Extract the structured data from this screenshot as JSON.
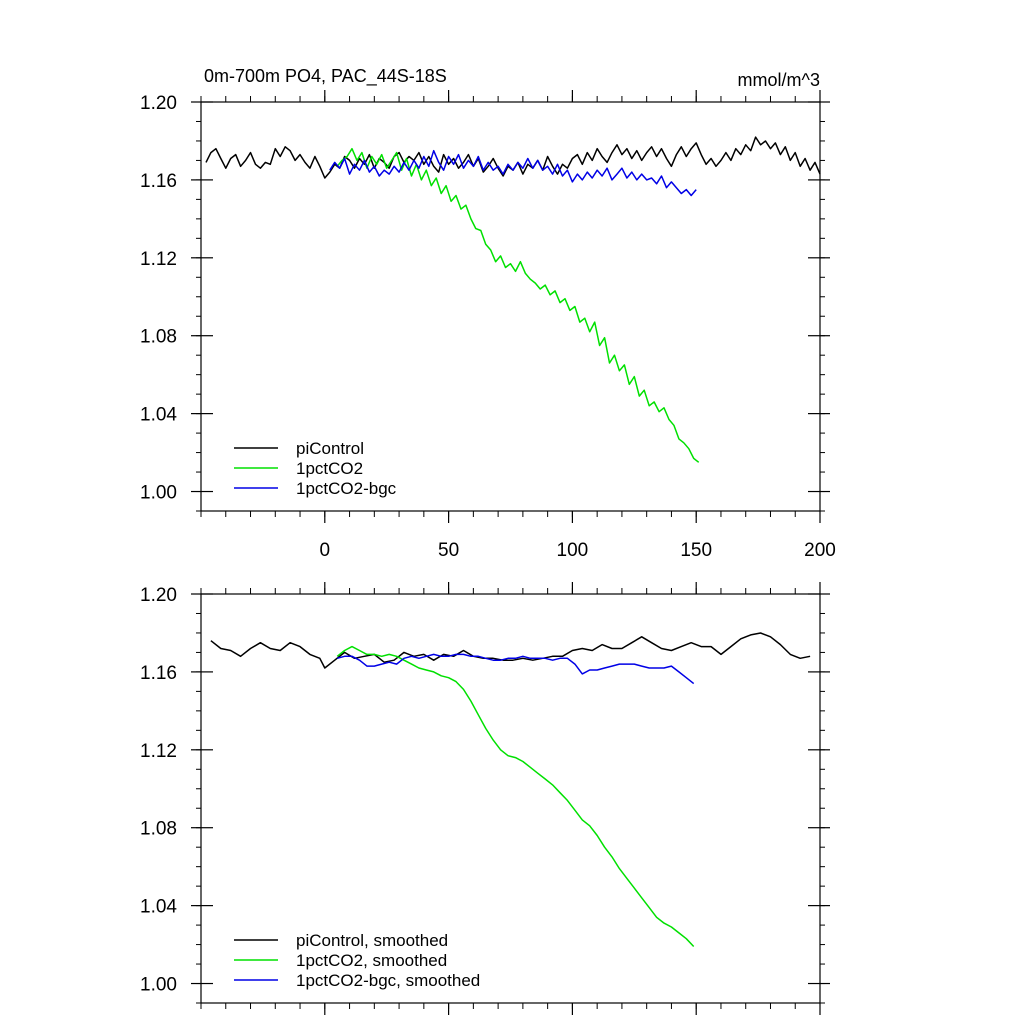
{
  "figure": {
    "title_left": "0m-700m PO4, PAC_44S-18S",
    "title_right": "mmol/m^3"
  },
  "chart_data": [
    {
      "type": "line",
      "panel": "top",
      "title": "0m-700m PO4, PAC_44S-18S",
      "units": "mmol/m^3",
      "xlim": [
        -50,
        200
      ],
      "ylim": [
        0.99,
        1.2
      ],
      "x_ticks": [
        0,
        50,
        100,
        150,
        200
      ],
      "x_tick_labels": [
        "0",
        "50",
        "100",
        "150",
        "200"
      ],
      "y_ticks": [
        1.0,
        1.04,
        1.08,
        1.12,
        1.16,
        1.2
      ],
      "y_tick_labels": [
        "1.00",
        "1.04",
        "1.08",
        "1.12",
        "1.16",
        "1.20"
      ],
      "grid": false,
      "legend_position": "bottom-left",
      "series": [
        {
          "name": "piControl",
          "color": "#000000",
          "x": [
            -48,
            -46,
            -44,
            -42,
            -40,
            -38,
            -36,
            -34,
            -32,
            -30,
            -28,
            -26,
            -24,
            -22,
            -20,
            -18,
            -16,
            -14,
            -12,
            -10,
            -8,
            -6,
            -4,
            -2,
            0,
            2,
            4,
            6,
            8,
            10,
            12,
            14,
            16,
            18,
            20,
            22,
            24,
            26,
            28,
            30,
            32,
            34,
            36,
            38,
            40,
            42,
            44,
            46,
            48,
            50,
            52,
            54,
            56,
            58,
            60,
            62,
            64,
            66,
            68,
            70,
            72,
            74,
            76,
            78,
            80,
            82,
            84,
            86,
            88,
            90,
            92,
            94,
            96,
            98,
            100,
            102,
            104,
            106,
            108,
            110,
            112,
            114,
            116,
            118,
            120,
            122,
            124,
            126,
            128,
            130,
            132,
            134,
            136,
            138,
            140,
            142,
            144,
            146,
            148,
            150,
            152,
            154,
            156,
            158,
            160,
            162,
            164,
            166,
            168,
            170,
            172,
            174,
            176,
            178,
            180,
            182,
            184,
            186,
            188,
            190,
            192,
            194,
            196,
            198,
            200
          ],
          "y": [
            1.169,
            1.174,
            1.176,
            1.171,
            1.166,
            1.171,
            1.173,
            1.167,
            1.17,
            1.174,
            1.168,
            1.166,
            1.169,
            1.168,
            1.176,
            1.172,
            1.177,
            1.175,
            1.17,
            1.173,
            1.169,
            1.166,
            1.172,
            1.167,
            1.161,
            1.164,
            1.168,
            1.166,
            1.172,
            1.17,
            1.166,
            1.171,
            1.168,
            1.173,
            1.166,
            1.171,
            1.169,
            1.166,
            1.172,
            1.174,
            1.169,
            1.172,
            1.17,
            1.174,
            1.168,
            1.172,
            1.167,
            1.164,
            1.173,
            1.168,
            1.171,
            1.166,
            1.169,
            1.173,
            1.167,
            1.171,
            1.164,
            1.167,
            1.171,
            1.166,
            1.162,
            1.167,
            1.165,
            1.169,
            1.163,
            1.168,
            1.166,
            1.17,
            1.165,
            1.172,
            1.167,
            1.163,
            1.168,
            1.166,
            1.171,
            1.173,
            1.168,
            1.174,
            1.17,
            1.176,
            1.172,
            1.169,
            1.174,
            1.178,
            1.173,
            1.176,
            1.171,
            1.175,
            1.17,
            1.174,
            1.177,
            1.172,
            1.176,
            1.171,
            1.167,
            1.173,
            1.177,
            1.172,
            1.176,
            1.179,
            1.173,
            1.168,
            1.171,
            1.167,
            1.17,
            1.174,
            1.17,
            1.176,
            1.173,
            1.178,
            1.175,
            1.182,
            1.178,
            1.18,
            1.176,
            1.179,
            1.173,
            1.177,
            1.17,
            1.174,
            1.167,
            1.171,
            1.165,
            1.169,
            1.163
          ]
        },
        {
          "name": "1pctCO2",
          "color": "#00e000",
          "x": [
            5,
            7,
            9,
            11,
            13,
            15,
            17,
            19,
            21,
            23,
            25,
            27,
            29,
            31,
            33,
            35,
            37,
            39,
            41,
            43,
            45,
            47,
            49,
            51,
            53,
            55,
            57,
            59,
            61,
            63,
            65,
            67,
            69,
            71,
            73,
            75,
            77,
            79,
            81,
            83,
            85,
            87,
            89,
            91,
            93,
            95,
            97,
            99,
            101,
            103,
            105,
            107,
            109,
            111,
            113,
            115,
            117,
            119,
            121,
            123,
            125,
            127,
            129,
            131,
            133,
            135,
            137,
            139,
            141,
            143,
            145,
            147,
            149,
            151
          ],
          "y": [
            1.167,
            1.17,
            1.172,
            1.176,
            1.17,
            1.174,
            1.166,
            1.172,
            1.168,
            1.173,
            1.166,
            1.17,
            1.174,
            1.165,
            1.171,
            1.162,
            1.168,
            1.16,
            1.165,
            1.157,
            1.161,
            1.153,
            1.157,
            1.149,
            1.152,
            1.145,
            1.147,
            1.14,
            1.135,
            1.134,
            1.127,
            1.124,
            1.118,
            1.121,
            1.115,
            1.117,
            1.113,
            1.118,
            1.112,
            1.109,
            1.107,
            1.104,
            1.106,
            1.101,
            1.103,
            1.097,
            1.099,
            1.093,
            1.095,
            1.087,
            1.089,
            1.082,
            1.087,
            1.075,
            1.079,
            1.066,
            1.07,
            1.062,
            1.065,
            1.055,
            1.059,
            1.049,
            1.052,
            1.044,
            1.046,
            1.041,
            1.043,
            1.037,
            1.034,
            1.027,
            1.025,
            1.022,
            1.017,
            1.015
          ]
        },
        {
          "name": "1pctCO2-bgc",
          "color": "#0000e6",
          "x": [
            2,
            4,
            6,
            8,
            10,
            12,
            14,
            16,
            18,
            20,
            22,
            24,
            26,
            28,
            30,
            32,
            34,
            36,
            38,
            40,
            42,
            44,
            46,
            48,
            50,
            52,
            54,
            56,
            58,
            60,
            62,
            64,
            66,
            68,
            70,
            72,
            74,
            76,
            78,
            80,
            82,
            84,
            86,
            88,
            90,
            92,
            94,
            96,
            98,
            100,
            102,
            104,
            106,
            108,
            110,
            112,
            114,
            116,
            118,
            120,
            122,
            124,
            126,
            128,
            130,
            132,
            134,
            136,
            138,
            140,
            142,
            144,
            146,
            148,
            150
          ],
          "y": [
            1.165,
            1.169,
            1.166,
            1.171,
            1.163,
            1.168,
            1.165,
            1.17,
            1.164,
            1.167,
            1.162,
            1.165,
            1.163,
            1.167,
            1.164,
            1.169,
            1.165,
            1.17,
            1.166,
            1.172,
            1.167,
            1.175,
            1.169,
            1.165,
            1.172,
            1.168,
            1.173,
            1.166,
            1.17,
            1.167,
            1.172,
            1.165,
            1.169,
            1.165,
            1.167,
            1.163,
            1.168,
            1.165,
            1.169,
            1.166,
            1.171,
            1.166,
            1.17,
            1.165,
            1.167,
            1.163,
            1.168,
            1.162,
            1.165,
            1.159,
            1.163,
            1.16,
            1.164,
            1.161,
            1.165,
            1.162,
            1.166,
            1.16,
            1.163,
            1.166,
            1.161,
            1.164,
            1.16,
            1.163,
            1.16,
            1.161,
            1.158,
            1.162,
            1.156,
            1.159,
            1.156,
            1.153,
            1.155,
            1.152,
            1.155
          ]
        }
      ]
    },
    {
      "type": "line",
      "panel": "bottom",
      "xlim": [
        -50,
        200
      ],
      "ylim": [
        0.99,
        1.2
      ],
      "x_ticks": [
        0,
        50,
        100,
        150,
        200
      ],
      "y_ticks": [
        1.0,
        1.04,
        1.08,
        1.12,
        1.16,
        1.2
      ],
      "y_tick_labels": [
        "1.00",
        "1.04",
        "1.08",
        "1.12",
        "1.16",
        "1.20"
      ],
      "grid": false,
      "legend_position": "bottom-left",
      "series": [
        {
          "name": "piControl, smoothed",
          "color": "#000000",
          "x": [
            -46,
            -42,
            -38,
            -34,
            -30,
            -26,
            -22,
            -18,
            -14,
            -10,
            -6,
            -2,
            0,
            4,
            8,
            12,
            16,
            20,
            24,
            28,
            32,
            36,
            40,
            44,
            48,
            52,
            56,
            60,
            64,
            68,
            72,
            76,
            80,
            84,
            88,
            92,
            96,
            100,
            104,
            108,
            112,
            116,
            120,
            124,
            128,
            132,
            136,
            140,
            144,
            148,
            152,
            156,
            160,
            164,
            168,
            172,
            176,
            180,
            184,
            188,
            192,
            196
          ],
          "y": [
            1.176,
            1.172,
            1.171,
            1.168,
            1.172,
            1.175,
            1.172,
            1.171,
            1.175,
            1.173,
            1.169,
            1.167,
            1.162,
            1.166,
            1.17,
            1.167,
            1.168,
            1.169,
            1.165,
            1.166,
            1.17,
            1.168,
            1.169,
            1.166,
            1.169,
            1.168,
            1.171,
            1.168,
            1.167,
            1.167,
            1.166,
            1.166,
            1.167,
            1.166,
            1.167,
            1.168,
            1.168,
            1.171,
            1.172,
            1.171,
            1.174,
            1.172,
            1.172,
            1.175,
            1.178,
            1.175,
            1.172,
            1.171,
            1.173,
            1.175,
            1.173,
            1.173,
            1.169,
            1.173,
            1.177,
            1.179,
            1.18,
            1.178,
            1.174,
            1.169,
            1.167,
            1.168
          ]
        },
        {
          "name": "1pctCO2, smoothed",
          "color": "#00e000",
          "x": [
            5,
            8,
            11,
            14,
            17,
            20,
            23,
            26,
            29,
            32,
            35,
            38,
            41,
            44,
            47,
            50,
            53,
            56,
            59,
            62,
            65,
            68,
            71,
            74,
            77,
            80,
            83,
            86,
            89,
            92,
            95,
            98,
            101,
            104,
            107,
            110,
            113,
            116,
            119,
            122,
            125,
            128,
            131,
            134,
            137,
            140,
            143,
            146,
            149
          ],
          "y": [
            1.168,
            1.171,
            1.173,
            1.171,
            1.169,
            1.169,
            1.168,
            1.169,
            1.168,
            1.166,
            1.164,
            1.162,
            1.161,
            1.16,
            1.158,
            1.157,
            1.155,
            1.151,
            1.145,
            1.138,
            1.131,
            1.125,
            1.12,
            1.117,
            1.116,
            1.114,
            1.111,
            1.108,
            1.105,
            1.102,
            1.098,
            1.094,
            1.089,
            1.084,
            1.081,
            1.076,
            1.07,
            1.065,
            1.059,
            1.054,
            1.049,
            1.044,
            1.039,
            1.034,
            1.031,
            1.029,
            1.026,
            1.023,
            1.019
          ]
        },
        {
          "name": "1pctCO2-bgc, smoothed",
          "color": "#0000e6",
          "x": [
            5,
            8,
            11,
            14,
            17,
            20,
            23,
            26,
            29,
            32,
            35,
            38,
            41,
            44,
            47,
            50,
            53,
            56,
            59,
            62,
            65,
            68,
            71,
            74,
            77,
            80,
            83,
            86,
            89,
            92,
            95,
            98,
            101,
            104,
            107,
            110,
            113,
            116,
            119,
            122,
            125,
            128,
            131,
            134,
            137,
            140,
            143,
            146,
            149
          ],
          "y": [
            1.167,
            1.168,
            1.168,
            1.166,
            1.163,
            1.163,
            1.164,
            1.165,
            1.164,
            1.167,
            1.168,
            1.167,
            1.168,
            1.169,
            1.168,
            1.168,
            1.169,
            1.169,
            1.168,
            1.168,
            1.167,
            1.166,
            1.166,
            1.167,
            1.167,
            1.168,
            1.167,
            1.167,
            1.167,
            1.166,
            1.167,
            1.167,
            1.164,
            1.159,
            1.161,
            1.161,
            1.162,
            1.163,
            1.164,
            1.164,
            1.164,
            1.163,
            1.162,
            1.162,
            1.162,
            1.163,
            1.16,
            1.157,
            1.154
          ]
        }
      ]
    }
  ]
}
